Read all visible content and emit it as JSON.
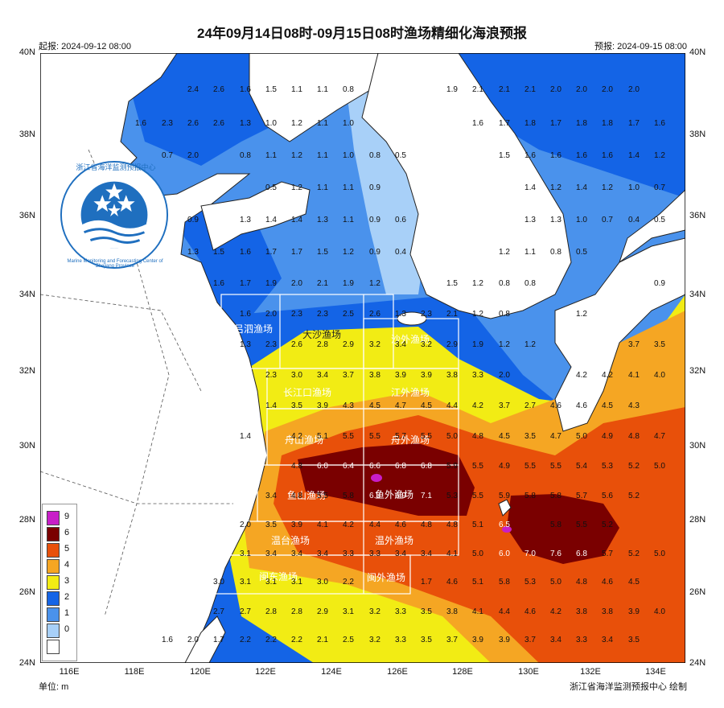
{
  "title": "24年09月14日08时-09月15日08时渔场精细化海浪预报",
  "issue_time": "起报: 2024-09-12 08:00",
  "valid_time": "预报: 2024-09-15 08:00",
  "unit": "单位: m",
  "credit": "浙江省海洋监测预报中心 绘制",
  "logo": {
    "name_cn": "浙江省海洋监测预报中心",
    "name_en": "Marine Monitoring and Forecasting Center of Zhejiang Province"
  },
  "lat_labels": [
    "40N",
    "38N",
    "36N",
    "34N",
    "32N",
    "30N",
    "28N",
    "26N",
    "24N"
  ],
  "lon_labels": [
    "116E",
    "118E",
    "120E",
    "122E",
    "124E",
    "126E",
    "128E",
    "130E",
    "132E",
    "134E"
  ],
  "legend": [
    {
      "label": "9",
      "color": "#c81ec8"
    },
    {
      "label": "6",
      "color": "#7a0000"
    },
    {
      "label": "5",
      "color": "#e8500a"
    },
    {
      "label": "4",
      "color": "#f5a623"
    },
    {
      "label": "3",
      "color": "#f2ec14"
    },
    {
      "label": "2",
      "color": "#1464e6"
    },
    {
      "label": "1",
      "color": "#4a92ec"
    },
    {
      "label": "0",
      "color": "#a8d0f8"
    },
    {
      "label": "",
      "color": "#ffffff"
    }
  ],
  "fishing_grounds": [
    "吕泗渔场",
    "大沙渔场",
    "沙外渔场",
    "长江口渔场",
    "江外渔场",
    "舟山渔场",
    "舟外渔场",
    "鱼山渔场",
    "鱼外渔场",
    "温台渔场",
    "温外渔场",
    "闽东渔场",
    "闽外渔场"
  ],
  "wave_values": [
    [
      "2.4",
      "2.6",
      "1.6",
      "1.5",
      "1.1",
      "1.1",
      "0.8",
      "1.9",
      "2.1",
      "2.1",
      "2.1",
      "2.0",
      "2.0",
      "2.0",
      "2.0"
    ],
    [
      "1.6",
      "2.3",
      "2.6",
      "2.6",
      "1.3",
      "1.0",
      "1.2",
      "1.1",
      "1.0",
      "1.6",
      "1.7",
      "1.8",
      "1.7",
      "1.8",
      "1.8",
      "1.7",
      "1.6"
    ],
    [
      "0.7",
      "2.0",
      "0.8",
      "1.1",
      "1.2",
      "1.1",
      "1.0",
      "0.8",
      "0.5",
      "1.5",
      "1.6",
      "1.6",
      "1.6",
      "1.6",
      "1.4",
      "1.2"
    ],
    [
      "0.5",
      "1.2",
      "1.1",
      "1.1",
      "0.9",
      "1.4",
      "1.2",
      "1.4",
      "1.2",
      "1.0",
      "0.7"
    ],
    [
      "0.9",
      "1.3",
      "1.4",
      "1.4",
      "1.3",
      "1.1",
      "0.9",
      "0.6",
      "1.3",
      "1.3",
      "1.0",
      "0.7",
      "0.4",
      "0.5"
    ],
    [
      "1.3",
      "1.5",
      "1.6",
      "1.7",
      "1.7",
      "1.5",
      "1.2",
      "0.9",
      "0.4",
      "1.2",
      "1.1",
      "0.8",
      "0.5"
    ],
    [
      "1.6",
      "1.7",
      "1.9",
      "2.0",
      "2.1",
      "1.9",
      "1.2",
      "1.5",
      "1.2",
      "0.8",
      "0.8",
      "0.9"
    ],
    [
      "1.6",
      "2.0",
      "2.3",
      "2.3",
      "2.5",
      "2.6",
      "1.3",
      "2.3",
      "2.1",
      "1.2",
      "0.8",
      "1.2"
    ],
    [
      "1.3",
      "2.3",
      "2.6",
      "2.8",
      "2.9",
      "3.2",
      "3.4",
      "3.2",
      "2.9",
      "1.9",
      "1.2",
      "1.2",
      "3.7",
      "3.5"
    ],
    [
      "2.3",
      "3.0",
      "3.4",
      "3.7",
      "3.8",
      "3.9",
      "3.9",
      "3.8",
      "3.3",
      "2.0",
      "4.2",
      "4.2",
      "4.1",
      "4.0"
    ],
    [
      "1.4",
      "3.5",
      "3.9",
      "4.3",
      "4.5",
      "4.7",
      "4.5",
      "4.4",
      "4.2",
      "3.7",
      "2.7",
      "4.6",
      "4.6",
      "4.5",
      "4.3"
    ],
    [
      "1.4",
      "4.2",
      "5.1",
      "5.5",
      "5.5",
      "5.7",
      "5.5",
      "5.0",
      "4.8",
      "4.5",
      "3.5",
      "4.7",
      "5.0",
      "4.9",
      "4.8",
      "4.7"
    ],
    [
      "4.8",
      "6.0",
      "6.4",
      "6.6",
      "6.8",
      "6.8",
      "5.9",
      "5.5",
      "4.9",
      "5.5",
      "5.5",
      "5.4",
      "5.3",
      "5.2",
      "5.0"
    ],
    [
      "3.4",
      "4.8",
      "5.5",
      "5.8",
      "6.3",
      "6.9",
      "7.1",
      "5.3",
      "5.5",
      "5.9",
      "5.8",
      "5.8",
      "5.7",
      "5.6",
      "5.2"
    ],
    [
      "2.0",
      "3.5",
      "3.9",
      "4.1",
      "4.2",
      "4.4",
      "4.6",
      "4.8",
      "4.8",
      "5.1",
      "6.5",
      "5.8",
      "5.5",
      "5.2"
    ],
    [
      "3.1",
      "3.4",
      "3.4",
      "3.4",
      "3.3",
      "3.3",
      "3.4",
      "3.4",
      "4.1",
      "5.0",
      "6.0",
      "7.0",
      "7.6",
      "6.8",
      "5.7",
      "5.2",
      "5.0"
    ],
    [
      "3.0",
      "3.1",
      "3.1",
      "3.1",
      "3.0",
      "2.2",
      "1.7",
      "4.6",
      "5.1",
      "5.8",
      "5.3",
      "5.0",
      "4.8",
      "4.6",
      "4.5"
    ],
    [
      "2.7",
      "2.7",
      "2.8",
      "2.8",
      "2.9",
      "3.1",
      "3.2",
      "3.3",
      "3.5",
      "3.8",
      "4.1",
      "4.4",
      "4.6",
      "4.2",
      "3.8",
      "3.8",
      "3.9",
      "4.0"
    ],
    [
      "1.6",
      "2.0",
      "1.7",
      "2.2",
      "2.2",
      "2.2",
      "2.1",
      "2.5",
      "3.2",
      "3.3",
      "3.5",
      "3.7",
      "3.9",
      "3.9",
      "3.7",
      "3.4",
      "3.3",
      "3.4",
      "3.5"
    ]
  ]
}
